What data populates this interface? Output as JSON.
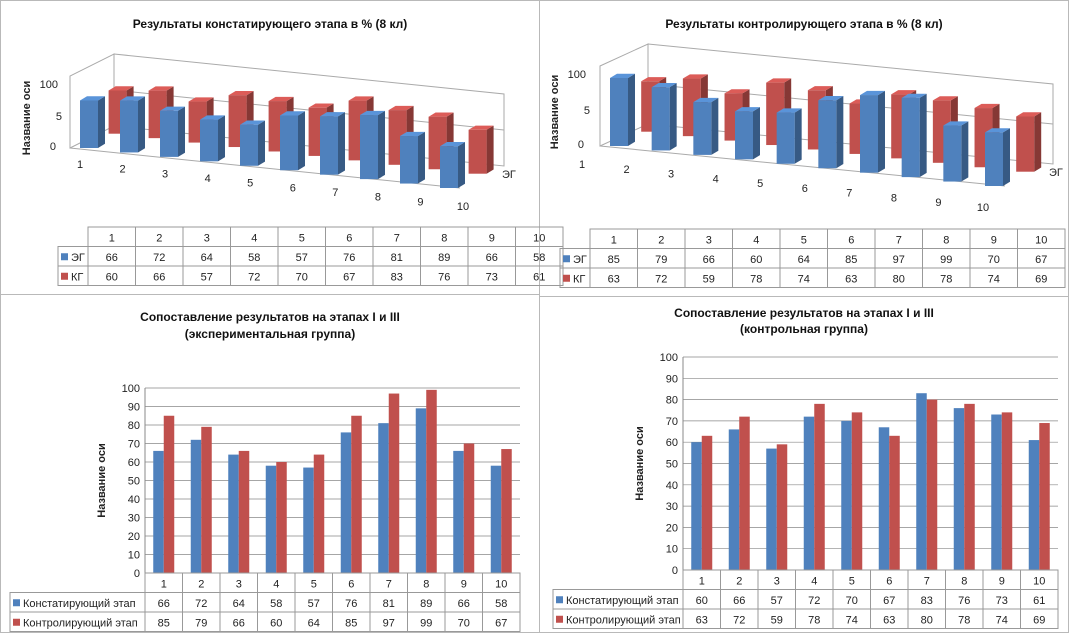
{
  "colors": {
    "eg": "#4f81bd",
    "kg": "#c0504d"
  },
  "chart_data": [
    {
      "type": "bar3d",
      "title": "Результаты  констатирующего этапа в % (8 кл)",
      "ylabel": "Название оси",
      "ytick_labels": [
        "0",
        "5",
        "100"
      ],
      "depth_label": "ЭГ",
      "categories": [
        "1",
        "2",
        "3",
        "4",
        "5",
        "6",
        "7",
        "8",
        "9",
        "10"
      ],
      "series": [
        {
          "name": "ЭГ",
          "color": "#4f81bd",
          "values": [
            66,
            72,
            64,
            58,
            57,
            76,
            81,
            89,
            66,
            58
          ]
        },
        {
          "name": "КГ",
          "color": "#c0504d",
          "values": [
            60,
            66,
            57,
            72,
            70,
            67,
            83,
            76,
            73,
            61
          ]
        }
      ],
      "ylim": [
        0,
        100
      ]
    },
    {
      "type": "bar3d",
      "title": "Результаты  контролирующего этапа в % (8 кл)",
      "ylabel": "Название оси",
      "ytick_labels": [
        "0",
        "5",
        "100"
      ],
      "depth_label": "ЭГ",
      "categories": [
        "1",
        "2",
        "3",
        "4",
        "5",
        "6",
        "7",
        "8",
        "9",
        "10"
      ],
      "series": [
        {
          "name": "ЭГ",
          "color": "#4f81bd",
          "values": [
            85,
            79,
            66,
            60,
            64,
            85,
            97,
            99,
            70,
            67
          ]
        },
        {
          "name": "КГ",
          "color": "#c0504d",
          "values": [
            63,
            72,
            59,
            78,
            74,
            63,
            80,
            78,
            74,
            69
          ]
        }
      ],
      "ylim": [
        0,
        100
      ]
    },
    {
      "type": "bar",
      "title": "Сопоставление результатов на этапах  I и III",
      "subtitle": "(экспериментальная группа)",
      "ylabel": "Название оси",
      "yticks": [
        "0",
        "10",
        "20",
        "30",
        "40",
        "50",
        "60",
        "70",
        "80",
        "90",
        "100"
      ],
      "categories": [
        "1",
        "2",
        "3",
        "4",
        "5",
        "6",
        "7",
        "8",
        "9",
        "10"
      ],
      "series": [
        {
          "name": "Констатирующий этап",
          "color": "#4f81bd",
          "values": [
            66,
            72,
            64,
            58,
            57,
            76,
            81,
            89,
            66,
            58
          ]
        },
        {
          "name": "Контролирующий этап",
          "color": "#c0504d",
          "values": [
            85,
            79,
            66,
            60,
            64,
            85,
            97,
            99,
            70,
            67
          ]
        }
      ],
      "ylim": [
        0,
        100
      ],
      "grid": true
    },
    {
      "type": "bar",
      "title": "Сопоставление результатов на этапах  I и III",
      "subtitle": "(контрольная группа)",
      "ylabel": "Название оси",
      "yticks": [
        "0",
        "10",
        "20",
        "30",
        "40",
        "50",
        "60",
        "70",
        "80",
        "90",
        "100"
      ],
      "categories": [
        "1",
        "2",
        "3",
        "4",
        "5",
        "6",
        "7",
        "8",
        "9",
        "10"
      ],
      "series": [
        {
          "name": "Констатирующий этап",
          "color": "#4f81bd",
          "values": [
            60,
            66,
            57,
            72,
            70,
            67,
            83,
            76,
            73,
            61
          ]
        },
        {
          "name": "Контролирующий этап",
          "color": "#c0504d",
          "values": [
            63,
            72,
            59,
            78,
            74,
            63,
            80,
            78,
            74,
            69
          ]
        }
      ],
      "ylim": [
        0,
        100
      ],
      "grid": true
    }
  ]
}
